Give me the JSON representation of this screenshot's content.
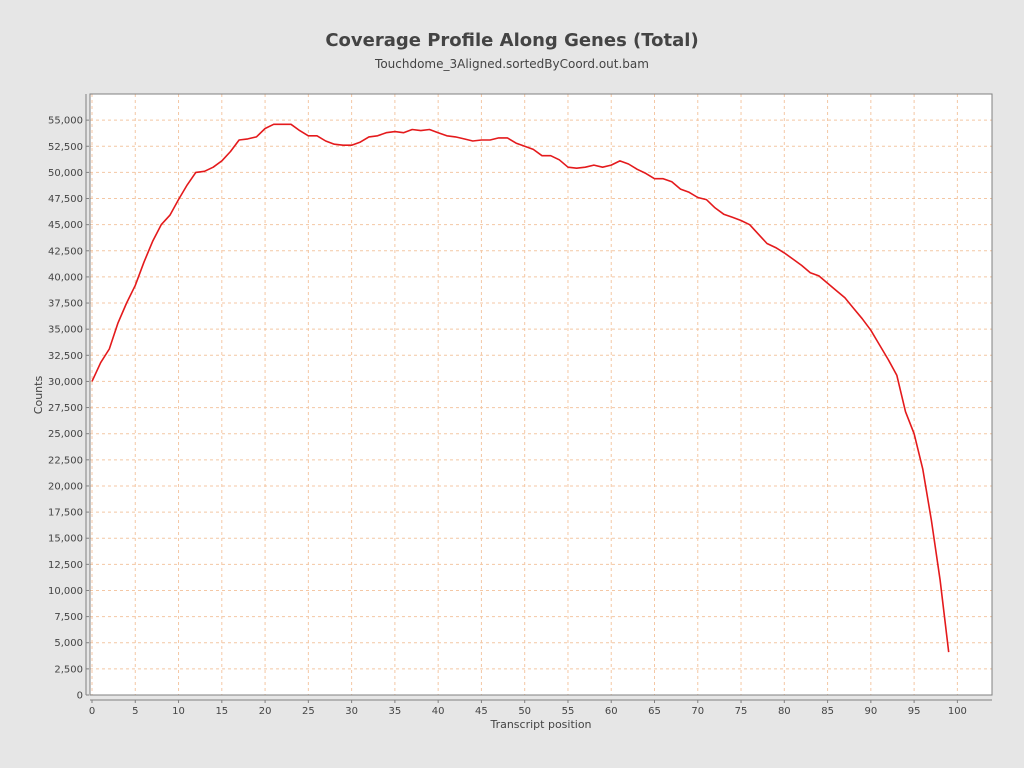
{
  "chart_data": {
    "type": "line",
    "title": "Coverage Profile Along Genes (Total)",
    "subtitle": "Touchdome_3Aligned.sortedByCoord.out.bam",
    "xlabel": "Transcript position",
    "ylabel": "Counts",
    "xlim": [
      0,
      104
    ],
    "ylim": [
      0,
      57500
    ],
    "x_ticks": [
      0,
      5,
      10,
      15,
      20,
      25,
      30,
      35,
      40,
      45,
      50,
      55,
      60,
      65,
      70,
      75,
      80,
      85,
      90,
      95,
      100
    ],
    "y_ticks": [
      0,
      2500,
      5000,
      7500,
      10000,
      12500,
      15000,
      17500,
      20000,
      22500,
      25000,
      27500,
      30000,
      32500,
      35000,
      37500,
      40000,
      42500,
      45000,
      47500,
      50000,
      52500,
      55000
    ],
    "y_tick_labels": [
      "0",
      "2,500",
      "5,000",
      "7,500",
      "10,000",
      "12,500",
      "15,000",
      "17,500",
      "20,000",
      "22,500",
      "25,000",
      "27,500",
      "30,000",
      "32,500",
      "35,000",
      "37,500",
      "40,000",
      "42,500",
      "45,000",
      "47,500",
      "50,000",
      "52,500",
      "55,000"
    ],
    "grid": true,
    "colors": {
      "line": "#e41a1c",
      "grid": "#f4c7a4",
      "plot_bg": "#ffffff",
      "border": "#808080"
    },
    "series": [
      {
        "x": [
          0,
          1,
          2,
          3,
          4,
          5,
          6,
          7,
          8,
          9,
          10,
          11,
          12,
          13,
          14,
          15,
          16,
          17,
          18,
          19,
          20,
          21,
          22,
          23,
          24,
          25,
          26,
          27,
          28,
          29,
          30,
          31,
          32,
          33,
          34,
          35,
          36,
          37,
          38,
          39,
          40,
          41,
          42,
          43,
          44,
          45,
          46,
          47,
          48,
          49,
          50,
          51,
          52,
          53,
          54,
          55,
          56,
          57,
          58,
          59,
          60,
          61,
          62,
          63,
          64,
          65,
          66,
          67,
          68,
          69,
          70,
          71,
          72,
          73,
          74,
          75,
          76,
          77,
          78,
          79,
          80,
          81,
          82,
          83,
          84,
          85,
          86,
          87,
          88,
          89,
          90,
          91,
          92,
          93,
          94,
          95,
          96,
          97,
          98,
          99
        ],
        "values": [
          30000,
          31800,
          33100,
          35600,
          37500,
          39200,
          41400,
          43400,
          45000,
          45900,
          47400,
          48800,
          50000,
          50100,
          50500,
          51100,
          52000,
          53100,
          53200,
          53400,
          54200,
          54600,
          54600,
          54600,
          54000,
          53500,
          53500,
          53000,
          52700,
          52600,
          52600,
          52900,
          53400,
          53500,
          53800,
          53900,
          53800,
          54100,
          54000,
          54100,
          53800,
          53500,
          53400,
          53200,
          53000,
          53100,
          53100,
          53300,
          53300,
          52800,
          52500,
          52200,
          51600,
          51600,
          51200,
          50500,
          50400,
          50500,
          50700,
          50500,
          50700,
          51100,
          50800,
          50300,
          49900,
          49400,
          49400,
          49100,
          48400,
          48100,
          47600,
          47400,
          46600,
          46000,
          45700,
          45400,
          45000,
          44100,
          43200,
          42800,
          42300,
          41700,
          41100,
          40400,
          40100,
          39400,
          38700,
          38000,
          37000,
          36000,
          34900,
          33500,
          32100,
          30600,
          27100,
          25000,
          21600,
          16700,
          11000,
          4100
        ]
      }
    ]
  }
}
